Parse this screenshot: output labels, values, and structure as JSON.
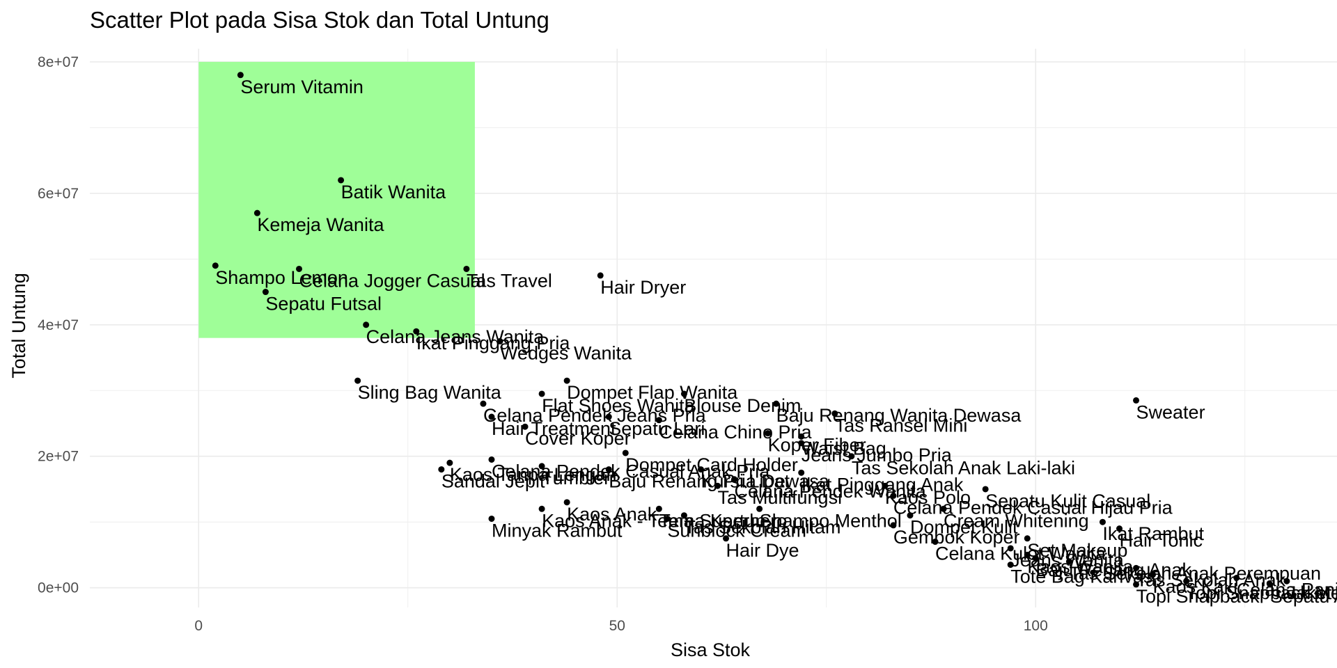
{
  "chart_data": {
    "type": "scatter",
    "title": "Scatter Plot pada Sisa Stok dan Total Untung",
    "xlabel": "Sisa Stok",
    "ylabel": "Total Untung",
    "xlim": [
      -13,
      136
    ],
    "ylim": [
      -3000000,
      82000000
    ],
    "xticks": [
      {
        "value": 0,
        "label": "0"
      },
      {
        "value": 50,
        "label": "50"
      },
      {
        "value": 100,
        "label": "100"
      }
    ],
    "yticks": [
      {
        "value": 0,
        "label": "0e+00"
      },
      {
        "value": 20000000,
        "label": "2e+07"
      },
      {
        "value": 40000000,
        "label": "4e+07"
      },
      {
        "value": 60000000,
        "label": "6e+07"
      },
      {
        "value": 80000000,
        "label": "8e+07"
      }
    ],
    "grid": true,
    "highlight_region": {
      "x": [
        0,
        33
      ],
      "y": [
        38000000,
        80000000
      ],
      "color": "#9ffe98"
    },
    "point_color": "#000000",
    "points": [
      {
        "label": "Serum Vitamin",
        "x": 5,
        "y": 78000000
      },
      {
        "label": "Batik Wanita",
        "x": 17,
        "y": 62000000
      },
      {
        "label": "Kemeja Wanita",
        "x": 7,
        "y": 57000000
      },
      {
        "label": "Shampo Lemon",
        "x": 2,
        "y": 49000000
      },
      {
        "label": "Celana Jogger Casual",
        "x": 12,
        "y": 48500000
      },
      {
        "label": "Tas Travel",
        "x": 32,
        "y": 48500000
      },
      {
        "label": "Hair Dryer",
        "x": 48,
        "y": 47500000
      },
      {
        "label": "Sepatu Futsal",
        "x": 8,
        "y": 45000000
      },
      {
        "label": "Celana Jeans Wanita",
        "x": 20,
        "y": 40000000
      },
      {
        "label": "Ikat Pinggang Pria",
        "x": 26,
        "y": 39000000
      },
      {
        "label": "Wedges Wanita",
        "x": 36,
        "y": 37500000
      },
      {
        "label": "Sling Bag Wanita",
        "x": 19,
        "y": 31500000
      },
      {
        "label": "Dompet Flap Wanita",
        "x": 44,
        "y": 31500000
      },
      {
        "label": "Flat Shoes Wanita",
        "x": 41,
        "y": 29500000
      },
      {
        "label": "Blouse Denim",
        "x": 58,
        "y": 29500000
      },
      {
        "label": "Celana Pendek Jeans Pria",
        "x": 34,
        "y": 28000000
      },
      {
        "label": "Baju Renang Wanita Dewasa",
        "x": 69,
        "y": 28000000
      },
      {
        "label": "Sweater",
        "x": 112,
        "y": 28500000
      },
      {
        "label": "Hair Treatment",
        "x": 35,
        "y": 26000000
      },
      {
        "label": "Sepatu Lari",
        "x": 49,
        "y": 26000000
      },
      {
        "label": "Celana Chino Pria",
        "x": 55,
        "y": 25500000
      },
      {
        "label": "Tas Ransel Mini",
        "x": 76,
        "y": 26500000
      },
      {
        "label": "Cover Koper",
        "x": 39,
        "y": 24500000
      },
      {
        "label": "Koper Fiber",
        "x": 68,
        "y": 23500000
      },
      {
        "label": "Waist Bag",
        "x": 72,
        "y": 23000000
      },
      {
        "label": "Jeans Jumbo Pria",
        "x": 72,
        "y": 22000000
      },
      {
        "label": "Dompet Card Holder",
        "x": 51,
        "y": 20500000
      },
      {
        "label": "Tas Sekolah Anak Laki-laki",
        "x": 78,
        "y": 20000000
      },
      {
        "label": "Celana Pendek Casual Anak Pria",
        "x": 35,
        "y": 19500000
      },
      {
        "label": "Kaos Tanpa Lengan",
        "x": 30,
        "y": 19000000
      },
      {
        "label": "Sandal Jepit",
        "x": 29,
        "y": 18000000
      },
      {
        "label": "Tumbler",
        "x": 41,
        "y": 18500000
      },
      {
        "label": "Baju Renang Pria Dewasa",
        "x": 49,
        "y": 18000000
      },
      {
        "label": "Kursi Lipat",
        "x": 60,
        "y": 18000000
      },
      {
        "label": "Ikat Pinggang Anak",
        "x": 72,
        "y": 17500000
      },
      {
        "label": "Celana Pendek Wanita",
        "x": 64,
        "y": 16500000
      },
      {
        "label": "Tas Multifungsi",
        "x": 62,
        "y": 15500000
      },
      {
        "label": "Kaos Polo",
        "x": 82,
        "y": 15500000
      },
      {
        "label": "Sepatu Kulit Casual",
        "x": 94,
        "y": 15000000
      },
      {
        "label": "Celana Pendek Casual Hijau Pria",
        "x": 83,
        "y": 14000000
      },
      {
        "label": "Kaos Anak",
        "x": 44,
        "y": 13000000
      },
      {
        "label": "Kaos Anak - Tema Superhero",
        "x": 41,
        "y": 12000000
      },
      {
        "label": "Tema Kartun",
        "x": 55,
        "y": 12000000
      },
      {
        "label": "Shampo Menthol",
        "x": 67,
        "y": 12000000
      },
      {
        "label": "Cream Whitening",
        "x": 89,
        "y": 12000000
      },
      {
        "label": "Tas Sekolah Hitam",
        "x": 58,
        "y": 11000000
      },
      {
        "label": "Dompet Kulit",
        "x": 85,
        "y": 11000000
      },
      {
        "label": "Ikat Rambut",
        "x": 108,
        "y": 10000000
      },
      {
        "label": "Minyak Rambut",
        "x": 35,
        "y": 10500000
      },
      {
        "label": "Sunblock Cream",
        "x": 56,
        "y": 10500000
      },
      {
        "label": "Gembok Koper",
        "x": 83,
        "y": 9500000
      },
      {
        "label": "Hair Tonic",
        "x": 110,
        "y": 9000000
      },
      {
        "label": "Hair Dye",
        "x": 63,
        "y": 7500000
      },
      {
        "label": "Celana Kulot Wanita",
        "x": 88,
        "y": 7000000
      },
      {
        "label": "Set Makeup",
        "x": 99,
        "y": 7500000
      },
      {
        "label": "Jeans Wanita",
        "x": 97,
        "y": 6000000
      },
      {
        "label": "Kaos Wanita",
        "x": 99,
        "y": 5000000
      },
      {
        "label": "Baju Renang Anak",
        "x": 100,
        "y": 4500000
      },
      {
        "label": "Tas Sekolah Anak Perempuan",
        "x": 104,
        "y": 4000000
      },
      {
        "label": "Tote Bag Kanvas",
        "x": 97,
        "y": 3500000
      },
      {
        "label": "Tas Sekolah Anak",
        "x": 112,
        "y": 3000000
      },
      {
        "label": "Kaos Kaki",
        "x": 114,
        "y": 2000000
      },
      {
        "label": "Topi Snapback",
        "x": 112,
        "y": 500000
      },
      {
        "label": "Topi Snapback Merah",
        "x": 118,
        "y": 1000000
      },
      {
        "label": "Celana Panjang Anak",
        "x": 124,
        "y": 1500000
      },
      {
        "label": "Jaket Denim",
        "x": 130,
        "y": 1000000
      },
      {
        "label": "Sepatu Anak",
        "x": 128,
        "y": 500000
      }
    ]
  }
}
